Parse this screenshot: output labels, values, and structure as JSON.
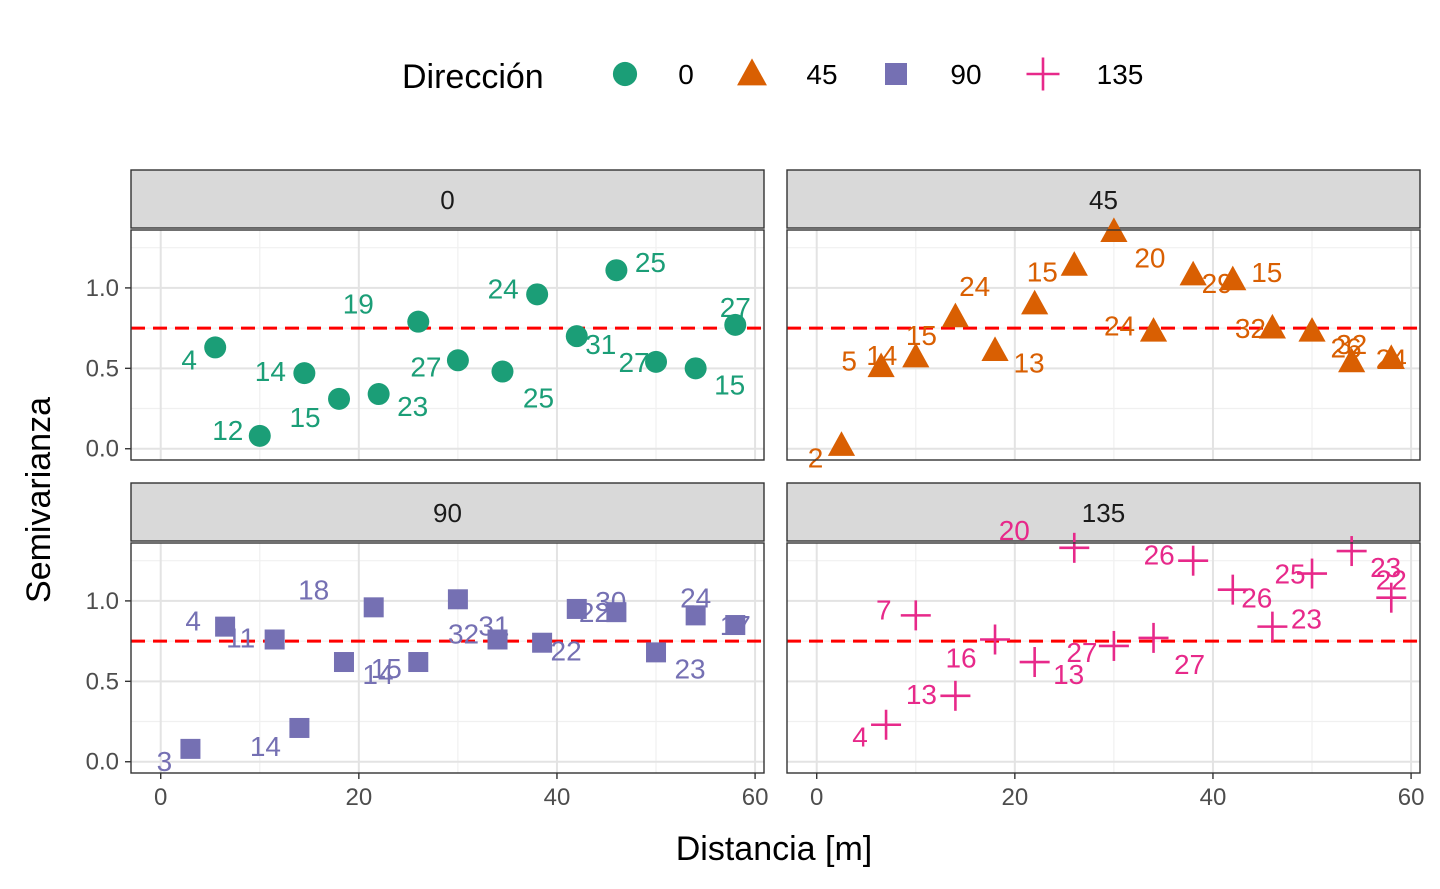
{
  "legend": {
    "title": "Dirección",
    "items": [
      {
        "label": "0",
        "shape": "circle",
        "color": "#1B9E77"
      },
      {
        "label": "45",
        "shape": "triangle",
        "color": "#D95F02"
      },
      {
        "label": "90",
        "shape": "square",
        "color": "#7570B3"
      },
      {
        "label": "135",
        "shape": "plus",
        "color": "#E7298A"
      }
    ]
  },
  "chart_data": {
    "type": "scatter",
    "xlabel": "Distancia [m]",
    "ylabel": "Semivarianza",
    "xlim": [
      0,
      60
    ],
    "ylim": [
      0,
      1.35
    ],
    "x_ticks": [
      0,
      20,
      40,
      60
    ],
    "y_ticks": [
      0.0,
      0.5,
      1.0
    ],
    "x_tick_labels": [
      "0",
      "20",
      "40",
      "60"
    ],
    "y_tick_labels": [
      "0.0",
      "0.5",
      "1.0"
    ],
    "reference_line": {
      "y": 0.75,
      "style": "dashed",
      "color": "#FF0000"
    },
    "grid": true,
    "facets": [
      {
        "label": "0",
        "shape": "circle",
        "color": "#1B9E77",
        "points": [
          {
            "x": 5.5,
            "y": 0.63,
            "n": "4"
          },
          {
            "x": 10.0,
            "y": 0.08,
            "n": "12"
          },
          {
            "x": 14.5,
            "y": 0.47,
            "n": "14"
          },
          {
            "x": 18.0,
            "y": 0.31,
            "n": "15"
          },
          {
            "x": 22.0,
            "y": 0.34,
            "n": "23"
          },
          {
            "x": 26.0,
            "y": 0.79,
            "n": "19"
          },
          {
            "x": 30.0,
            "y": 0.55,
            "n": "27"
          },
          {
            "x": 34.5,
            "y": 0.48,
            "n": "25"
          },
          {
            "x": 38.0,
            "y": 0.96,
            "n": "24"
          },
          {
            "x": 42.0,
            "y": 0.7,
            "n": "31"
          },
          {
            "x": 46.0,
            "y": 1.11,
            "n": "25"
          },
          {
            "x": 50.0,
            "y": 0.54,
            "n": "27"
          },
          {
            "x": 54.0,
            "y": 0.5,
            "n": "15"
          },
          {
            "x": 58.0,
            "y": 0.77,
            "n": "27"
          }
        ]
      },
      {
        "label": "45",
        "shape": "triangle",
        "color": "#D95F02",
        "points": [
          {
            "x": 2.5,
            "y": 0.02,
            "n": "2"
          },
          {
            "x": 6.5,
            "y": 0.51,
            "n": "5"
          },
          {
            "x": 10.0,
            "y": 0.57,
            "n": "14"
          },
          {
            "x": 14.0,
            "y": 0.82,
            "n": "15"
          },
          {
            "x": 18.0,
            "y": 0.61,
            "n": "13"
          },
          {
            "x": 22.0,
            "y": 0.9,
            "n": "24"
          },
          {
            "x": 26.0,
            "y": 1.14,
            "n": "15"
          },
          {
            "x": 30.0,
            "y": 1.35,
            "n": "20"
          },
          {
            "x": 34.0,
            "y": 0.73,
            "n": "24"
          },
          {
            "x": 38.0,
            "y": 1.08,
            "n": "29"
          },
          {
            "x": 42.0,
            "y": 1.05,
            "n": "15"
          },
          {
            "x": 46.0,
            "y": 0.75,
            "n": "32"
          },
          {
            "x": 50.0,
            "y": 0.73,
            "n": "26"
          },
          {
            "x": 54.0,
            "y": 0.54,
            "n": "32"
          },
          {
            "x": 58.0,
            "y": 0.56,
            "n": "24"
          }
        ]
      },
      {
        "label": "90",
        "shape": "square",
        "color": "#7570B3",
        "points": [
          {
            "x": 3.0,
            "y": 0.08,
            "n": "3"
          },
          {
            "x": 6.5,
            "y": 0.84,
            "n": "4"
          },
          {
            "x": 11.5,
            "y": 0.76,
            "n": "11"
          },
          {
            "x": 14.0,
            "y": 0.21,
            "n": "14"
          },
          {
            "x": 18.5,
            "y": 0.62,
            "n": "14"
          },
          {
            "x": 21.5,
            "y": 0.96,
            "n": "18"
          },
          {
            "x": 26.0,
            "y": 0.62,
            "n": "15"
          },
          {
            "x": 30.0,
            "y": 1.01,
            "n": "31"
          },
          {
            "x": 34.0,
            "y": 0.76,
            "n": "32"
          },
          {
            "x": 38.5,
            "y": 0.74,
            "n": "22"
          },
          {
            "x": 42.0,
            "y": 0.95,
            "n": "30"
          },
          {
            "x": 46.0,
            "y": 0.93,
            "n": "22"
          },
          {
            "x": 50.0,
            "y": 0.68,
            "n": "23"
          },
          {
            "x": 54.0,
            "y": 0.91,
            "n": "24"
          },
          {
            "x": 58.0,
            "y": 0.85,
            "n": "17"
          }
        ]
      },
      {
        "label": "135",
        "shape": "plus",
        "color": "#E7298A",
        "points": [
          {
            "x": 7.0,
            "y": 0.23,
            "n": "4"
          },
          {
            "x": 10.0,
            "y": 0.91,
            "n": "7"
          },
          {
            "x": 14.0,
            "y": 0.41,
            "n": "13"
          },
          {
            "x": 18.0,
            "y": 0.76,
            "n": "16"
          },
          {
            "x": 22.0,
            "y": 0.62,
            "n": "13"
          },
          {
            "x": 26.0,
            "y": 1.33,
            "n": "20"
          },
          {
            "x": 30.0,
            "y": 0.72,
            "n": "27"
          },
          {
            "x": 34.0,
            "y": 0.77,
            "n": "27"
          },
          {
            "x": 38.0,
            "y": 1.25,
            "n": "26"
          },
          {
            "x": 42.0,
            "y": 1.07,
            "n": "26"
          },
          {
            "x": 46.0,
            "y": 0.84,
            "n": "23"
          },
          {
            "x": 50.0,
            "y": 1.17,
            "n": "25"
          },
          {
            "x": 54.0,
            "y": 1.31,
            "n": "23"
          },
          {
            "x": 58.0,
            "y": 1.02,
            "n": "22"
          }
        ]
      }
    ]
  }
}
